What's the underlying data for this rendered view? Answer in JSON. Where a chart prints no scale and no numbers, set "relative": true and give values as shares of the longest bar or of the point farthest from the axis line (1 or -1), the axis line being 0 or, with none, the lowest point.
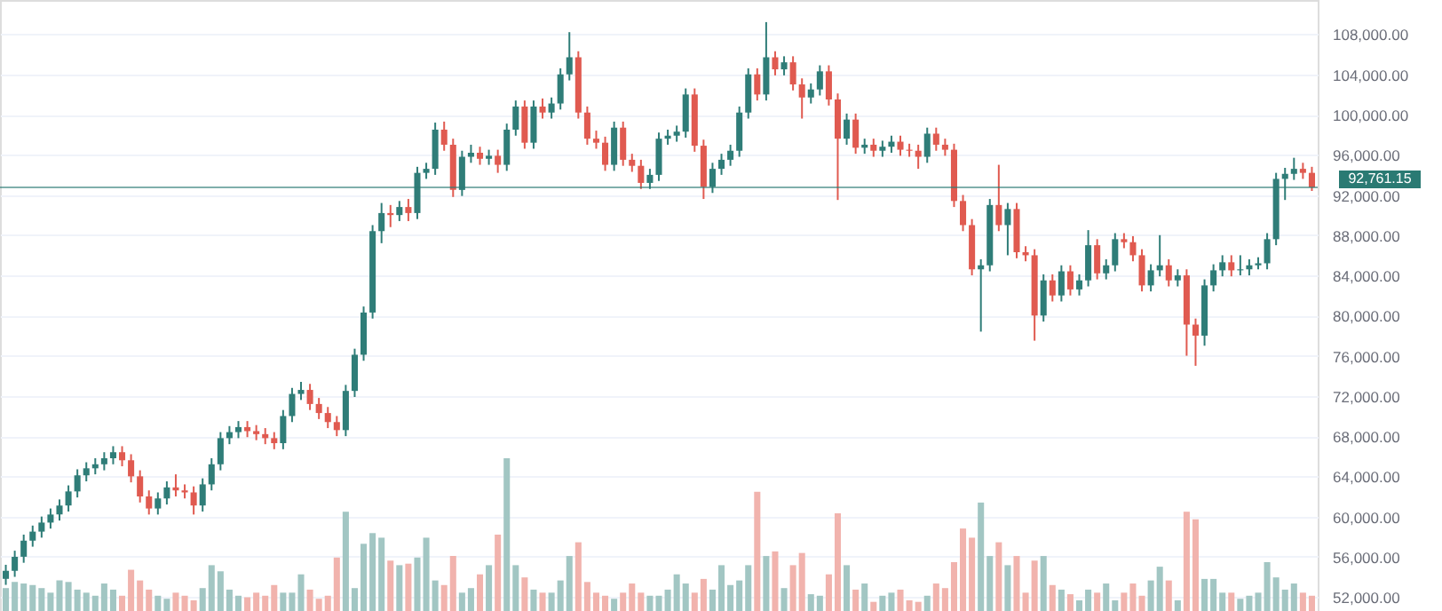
{
  "chart_data": [
    {
      "type": "candlestick",
      "categories": [
        null,
        null,
        null,
        null,
        null,
        null,
        null,
        null,
        null,
        null,
        null,
        null,
        null,
        null,
        null,
        null,
        null,
        null,
        null,
        null,
        null,
        null,
        null,
        null,
        null,
        null,
        null,
        null,
        null,
        null,
        null,
        null,
        null,
        null,
        null,
        null,
        null,
        null,
        null,
        null,
        null,
        null,
        null,
        null,
        null,
        null,
        null,
        null,
        null,
        null,
        null,
        null,
        null,
        null,
        null,
        null,
        null,
        null,
        null,
        null,
        null,
        null,
        null,
        null,
        null,
        null,
        null,
        null,
        null,
        null,
        null,
        null,
        null,
        null,
        null,
        null,
        null,
        null,
        null,
        null,
        null,
        null,
        null,
        null,
        null,
        null,
        null,
        null,
        null,
        null,
        null,
        null,
        null,
        null,
        null,
        null,
        null,
        null,
        null,
        null,
        null,
        null,
        null,
        null,
        null,
        null,
        null,
        null,
        null,
        null,
        null,
        null,
        null,
        null,
        null,
        null,
        null,
        null,
        null,
        null,
        null,
        null,
        null,
        null,
        null,
        null,
        null,
        null,
        null,
        null,
        null,
        null,
        null,
        null,
        null,
        null,
        null,
        null,
        null,
        null,
        null,
        null,
        null,
        null,
        null,
        null,
        null
      ],
      "ohlc": [
        [
          53800,
          55200,
          53200,
          54600
        ],
        [
          54600,
          56600,
          54000,
          56000
        ],
        [
          56000,
          58200,
          55400,
          57600
        ],
        [
          57600,
          59100,
          57000,
          58500
        ],
        [
          58500,
          60000,
          57900,
          59400
        ],
        [
          59400,
          60800,
          58800,
          60200
        ],
        [
          60200,
          61700,
          59600,
          61100
        ],
        [
          61100,
          63100,
          60500,
          62500
        ],
        [
          62500,
          64700,
          61900,
          64100
        ],
        [
          64100,
          65400,
          63500,
          64800
        ],
        [
          64800,
          65800,
          64200,
          65200
        ],
        [
          65200,
          66400,
          64600,
          65800
        ],
        [
          65800,
          67000,
          65200,
          66400
        ],
        [
          66400,
          67000,
          65000,
          65600
        ],
        [
          65600,
          66200,
          63400,
          64000
        ],
        [
          64000,
          64600,
          61400,
          62000
        ],
        [
          62000,
          62600,
          60200,
          60800
        ],
        [
          60800,
          62400,
          60200,
          61800
        ],
        [
          61800,
          63500,
          61200,
          62900
        ],
        [
          62900,
          64200,
          62000,
          62600
        ],
        [
          62600,
          63200,
          61800,
          62400
        ],
        [
          62400,
          63000,
          60200,
          61100
        ],
        [
          61100,
          63800,
          60500,
          63200
        ],
        [
          63200,
          65800,
          62600,
          65200
        ],
        [
          65200,
          68400,
          64600,
          67800
        ],
        [
          67800,
          69000,
          67200,
          68400
        ],
        [
          68400,
          69500,
          67800,
          68900
        ],
        [
          68900,
          69500,
          67900,
          68500
        ],
        [
          68500,
          69100,
          67600,
          68200
        ],
        [
          68200,
          68800,
          67200,
          67800
        ],
        [
          67800,
          68400,
          66700,
          67300
        ],
        [
          67300,
          70600,
          66700,
          70000
        ],
        [
          70000,
          72800,
          69400,
          72200
        ],
        [
          72200,
          73400,
          71600,
          72600
        ],
        [
          72600,
          73200,
          70600,
          71200
        ],
        [
          71200,
          71800,
          69700,
          70300
        ],
        [
          70300,
          70900,
          68800,
          69400
        ],
        [
          69400,
          70000,
          68000,
          68600
        ],
        [
          68600,
          73100,
          68000,
          72500
        ],
        [
          72500,
          76700,
          71900,
          76100
        ],
        [
          76100,
          80900,
          75500,
          80300
        ],
        [
          80300,
          89000,
          79700,
          88400
        ],
        [
          88400,
          91200,
          87200,
          90200
        ],
        [
          90200,
          91000,
          88800,
          90000
        ],
        [
          90000,
          91400,
          89400,
          90800
        ],
        [
          90800,
          91600,
          89400,
          90200
        ],
        [
          90200,
          94800,
          89600,
          94200
        ],
        [
          94200,
          95200,
          93600,
          94600
        ],
        [
          94600,
          99200,
          94000,
          98500
        ],
        [
          98500,
          99300,
          96400,
          97000
        ],
        [
          97000,
          97600,
          91800,
          92500
        ],
        [
          92500,
          96400,
          91900,
          95800
        ],
        [
          95800,
          97000,
          95200,
          96200
        ],
        [
          96200,
          96800,
          95000,
          95600
        ],
        [
          95600,
          96500,
          95000,
          95900
        ],
        [
          95900,
          96500,
          94200,
          95000
        ],
        [
          95000,
          99100,
          94400,
          98500
        ],
        [
          98500,
          101400,
          97900,
          100800
        ],
        [
          100800,
          101400,
          96600,
          97200
        ],
        [
          97200,
          101400,
          96600,
          100800
        ],
        [
          100800,
          101600,
          99600,
          100200
        ],
        [
          100200,
          101700,
          99600,
          101100
        ],
        [
          101100,
          104600,
          100500,
          104000
        ],
        [
          104000,
          108200,
          103400,
          105700
        ],
        [
          105700,
          106300,
          99600,
          100200
        ],
        [
          100200,
          100800,
          97000,
          97600
        ],
        [
          97600,
          98400,
          96600,
          97200
        ],
        [
          97200,
          97800,
          94400,
          95000
        ],
        [
          95000,
          99300,
          94400,
          98700
        ],
        [
          98700,
          99300,
          94900,
          95500
        ],
        [
          95500,
          96100,
          94300,
          94900
        ],
        [
          94900,
          95500,
          92600,
          93200
        ],
        [
          93200,
          94600,
          92600,
          94000
        ],
        [
          94000,
          98200,
          93400,
          97600
        ],
        [
          97600,
          98500,
          97000,
          97900
        ],
        [
          97900,
          98900,
          97300,
          98300
        ],
        [
          98300,
          102600,
          97700,
          102000
        ],
        [
          102000,
          102600,
          96300,
          96900
        ],
        [
          96900,
          97500,
          91600,
          92800
        ],
        [
          92800,
          95200,
          92200,
          94600
        ],
        [
          94600,
          96100,
          94000,
          95500
        ],
        [
          95500,
          97000,
          94900,
          96400
        ],
        [
          96400,
          100800,
          95800,
          100200
        ],
        [
          100200,
          104600,
          99600,
          104000
        ],
        [
          104000,
          104600,
          101400,
          102000
        ],
        [
          102000,
          109200,
          101400,
          105700
        ],
        [
          105700,
          106300,
          103900,
          104500
        ],
        [
          104500,
          105800,
          103900,
          105200
        ],
        [
          105200,
          105800,
          102400,
          103000
        ],
        [
          103000,
          103600,
          99600,
          101700
        ],
        [
          101700,
          103100,
          101100,
          102500
        ],
        [
          102500,
          104900,
          101900,
          104300
        ],
        [
          104300,
          104900,
          100900,
          101500
        ],
        [
          101500,
          102100,
          91500,
          97600
        ],
        [
          97600,
          100100,
          97000,
          99500
        ],
        [
          99500,
          100100,
          96100,
          96700
        ],
        [
          96700,
          97600,
          96100,
          97000
        ],
        [
          97000,
          97600,
          95800,
          96400
        ],
        [
          96400,
          97400,
          95800,
          96800
        ],
        [
          96800,
          97900,
          96200,
          97300
        ],
        [
          97300,
          97900,
          95900,
          96500
        ],
        [
          96500,
          97100,
          95800,
          96400
        ],
        [
          96400,
          97000,
          94600,
          95800
        ],
        [
          95800,
          98700,
          95200,
          98100
        ],
        [
          98100,
          98700,
          96400,
          97000
        ],
        [
          97000,
          97600,
          95900,
          96500
        ],
        [
          96500,
          97100,
          90800,
          91400
        ],
        [
          91400,
          92000,
          88400,
          89000
        ],
        [
          89000,
          89600,
          84000,
          84600
        ],
        [
          84600,
          85600,
          78400,
          85000
        ],
        [
          85000,
          91600,
          84400,
          91000
        ],
        [
          91000,
          95000,
          88400,
          89000
        ],
        [
          89000,
          91200,
          86000,
          90600
        ],
        [
          90600,
          91200,
          85700,
          86300
        ],
        [
          86300,
          86900,
          85400,
          86000
        ],
        [
          86000,
          86600,
          77500,
          80000
        ],
        [
          80000,
          84100,
          79400,
          83500
        ],
        [
          83500,
          84100,
          81400,
          82000
        ],
        [
          82000,
          85000,
          81400,
          84400
        ],
        [
          84400,
          85000,
          82000,
          82600
        ],
        [
          82600,
          84100,
          82000,
          83500
        ],
        [
          83500,
          88500,
          82900,
          87000
        ],
        [
          87000,
          87600,
          83600,
          84200
        ],
        [
          84200,
          85600,
          83600,
          85000
        ],
        [
          85000,
          88200,
          84400,
          87600
        ],
        [
          87600,
          88200,
          86700,
          87300
        ],
        [
          87300,
          87900,
          85400,
          86000
        ],
        [
          86000,
          86600,
          82400,
          83000
        ],
        [
          83000,
          85100,
          82400,
          84500
        ],
        [
          84500,
          88000,
          83900,
          85000
        ],
        [
          85000,
          85600,
          82900,
          83500
        ],
        [
          83500,
          84600,
          82900,
          84000
        ],
        [
          84000,
          84600,
          76000,
          79100
        ],
        [
          79100,
          79700,
          75000,
          78000
        ],
        [
          78000,
          83600,
          77000,
          83000
        ],
        [
          83000,
          85100,
          82400,
          84500
        ],
        [
          84500,
          86000,
          83900,
          85300
        ],
        [
          85300,
          86000,
          83900,
          84500
        ],
        [
          84500,
          86000,
          84000,
          84600
        ],
        [
          84600,
          85600,
          84000,
          85000
        ],
        [
          85000,
          85800,
          84600,
          85200
        ],
        [
          85200,
          88200,
          84600,
          87600
        ],
        [
          87600,
          94200,
          87000,
          93600
        ],
        [
          93600,
          94700,
          91500,
          94100
        ],
        [
          94100,
          95700,
          93500,
          94600
        ],
        [
          94600,
          95200,
          93600,
          94200
        ],
        [
          94200,
          94800,
          92400,
          92760
        ]
      ],
      "colors": [
        "#2f7d78",
        "#2f7d78",
        "#2f7d78",
        "#2f7d78",
        "#2f7d78",
        "#2f7d78",
        "#2f7d78",
        "#2f7d78",
        "#2f7d78",
        "#2f7d78",
        "#2f7d78",
        "#2f7d78",
        "#2f7d78",
        "#e05a50",
        "#e05a50",
        "#e05a50",
        "#e05a50",
        "#2f7d78",
        "#2f7d78",
        "#e05a50",
        "#e05a50",
        "#e05a50",
        "#2f7d78",
        "#2f7d78",
        "#2f7d78",
        "#2f7d78",
        "#2f7d78",
        "#e05a50",
        "#e05a50",
        "#e05a50",
        "#e05a50",
        "#2f7d78",
        "#2f7d78",
        "#2f7d78",
        "#e05a50",
        "#e05a50",
        "#e05a50",
        "#e05a50",
        "#2f7d78",
        "#2f7d78",
        "#2f7d78",
        "#2f7d78",
        "#2f7d78",
        "#e05a50",
        "#2f7d78",
        "#e05a50",
        "#2f7d78",
        "#2f7d78",
        "#2f7d78",
        "#e05a50",
        "#e05a50",
        "#2f7d78",
        "#2f7d78",
        "#e05a50",
        "#2f7d78",
        "#e05a50",
        "#2f7d78",
        "#2f7d78",
        "#e05a50",
        "#2f7d78",
        "#e05a50",
        "#2f7d78",
        "#2f7d78",
        "#2f7d78",
        "#e05a50",
        "#e05a50",
        "#e05a50",
        "#e05a50",
        "#2f7d78",
        "#e05a50",
        "#e05a50",
        "#e05a50",
        "#2f7d78",
        "#2f7d78",
        "#2f7d78",
        "#2f7d78",
        "#2f7d78",
        "#e05a50",
        "#e05a50",
        "#2f7d78",
        "#2f7d78",
        "#2f7d78",
        "#2f7d78",
        "#2f7d78",
        "#e05a50",
        "#2f7d78",
        "#e05a50",
        "#2f7d78",
        "#e05a50",
        "#e05a50",
        "#2f7d78",
        "#2f7d78",
        "#e05a50",
        "#e05a50",
        "#2f7d78",
        "#e05a50",
        "#2f7d78",
        "#e05a50",
        "#2f7d78",
        "#2f7d78",
        "#e05a50",
        "#e05a50",
        "#e05a50",
        "#2f7d78",
        "#e05a50",
        "#e05a50",
        "#e05a50",
        "#e05a50",
        "#e05a50",
        "#2f7d78",
        "#2f7d78",
        "#e05a50",
        "#2f7d78",
        "#e05a50",
        "#e05a50",
        "#e05a50",
        "#2f7d78",
        "#e05a50",
        "#2f7d78",
        "#e05a50",
        "#2f7d78",
        "#2f7d78",
        "#e05a50",
        "#2f7d78",
        "#2f7d78",
        "#e05a50",
        "#e05a50",
        "#e05a50",
        "#2f7d78",
        "#2f7d78",
        "#e05a50",
        "#2f7d78",
        "#e05a50",
        "#e05a50",
        "#2f7d78",
        "#2f7d78",
        "#2f7d78",
        "#e05a50",
        "#2f7d78",
        "#2f7d78",
        "#2f7d78",
        "#2f7d78",
        "#2f7d78",
        "#2f7d78",
        "#2f7d78",
        "#e05a50",
        "#e05a50"
      ],
      "ylim": [
        50600,
        111400
      ],
      "yticks": [
        {
          "value": 52000,
          "label": "52,000.00"
        },
        {
          "value": 56000,
          "label": "56,000.00"
        },
        {
          "value": 60000,
          "label": "60,000.00"
        },
        {
          "value": 64000,
          "label": "64,000.00"
        },
        {
          "value": 68000,
          "label": "68,000.00"
        },
        {
          "value": 72000,
          "label": "72,000.00"
        },
        {
          "value": 76000,
          "label": "76,000.00"
        },
        {
          "value": 80000,
          "label": "80,000.00"
        },
        {
          "value": 84000,
          "label": "84,000.00"
        },
        {
          "value": 88000,
          "label": "88,000.00"
        },
        {
          "value": 92000,
          "label": "92,000.00"
        },
        {
          "value": 96000,
          "label": "96,000.00"
        },
        {
          "value": 100000,
          "label": "100,000.00"
        },
        {
          "value": 104000,
          "label": "104,000.00"
        },
        {
          "value": 108000,
          "label": "108,000.00"
        }
      ],
      "ref_lines": [
        {
          "axis": "y",
          "value": 92761.15,
          "label": "92,761.15",
          "color": "#2a7a73"
        }
      ],
      "grid": "y"
    },
    {
      "type": "bar",
      "relative": true,
      "categories": [
        null,
        null,
        null,
        null,
        null,
        null,
        null,
        null,
        null,
        null,
        null,
        null,
        null,
        null,
        null,
        null,
        null,
        null,
        null,
        null,
        null,
        null,
        null,
        null,
        null,
        null,
        null,
        null,
        null,
        null,
        null,
        null,
        null,
        null,
        null,
        null,
        null,
        null,
        null,
        null,
        null,
        null,
        null,
        null,
        null,
        null,
        null,
        null,
        null,
        null,
        null,
        null,
        null,
        null,
        null,
        null,
        null,
        null,
        null,
        null,
        null,
        null,
        null,
        null,
        null,
        null,
        null,
        null,
        null,
        null,
        null,
        null,
        null,
        null,
        null,
        null,
        null,
        null,
        null,
        null,
        null,
        null,
        null,
        null,
        null,
        null,
        null,
        null,
        null,
        null,
        null,
        null,
        null,
        null,
        null,
        null,
        null,
        null,
        null,
        null,
        null,
        null,
        null,
        null,
        null,
        null,
        null,
        null,
        null,
        null,
        null,
        null,
        null,
        null,
        null,
        null,
        null,
        null,
        null,
        null,
        null,
        null,
        null,
        null,
        null,
        null,
        null,
        null,
        null,
        null,
        null,
        null,
        null,
        null,
        null,
        null,
        null,
        null,
        null,
        null,
        null,
        null,
        null,
        null,
        null,
        null,
        null
      ],
      "values": [
        0.15,
        0.19,
        0.18,
        0.17,
        0.15,
        0.12,
        0.2,
        0.19,
        0.14,
        0.12,
        0.1,
        0.18,
        0.14,
        0.1,
        0.27,
        0.2,
        0.14,
        0.1,
        0.08,
        0.12,
        0.1,
        0.07,
        0.15,
        0.3,
        0.26,
        0.14,
        0.1,
        0.09,
        0.12,
        0.1,
        0.17,
        0.12,
        0.12,
        0.24,
        0.14,
        0.08,
        0.1,
        0.35,
        0.65,
        0.15,
        0.44,
        0.51,
        0.48,
        0.33,
        0.3,
        0.31,
        0.35,
        0.48,
        0.2,
        0.17,
        0.36,
        0.12,
        0.15,
        0.24,
        0.3,
        0.5,
        1.0,
        0.3,
        0.22,
        0.14,
        0.12,
        0.12,
        0.2,
        0.36,
        0.45,
        0.19,
        0.12,
        0.1,
        0.08,
        0.12,
        0.18,
        0.12,
        0.1,
        0.1,
        0.14,
        0.24,
        0.18,
        0.12,
        0.21,
        0.14,
        0.3,
        0.17,
        0.2,
        0.3,
        0.78,
        0.36,
        0.39,
        0.15,
        0.3,
        0.38,
        0.11,
        0.1,
        0.24,
        0.64,
        0.3,
        0.14,
        0.18,
        0.06,
        0.1,
        0.12,
        0.14,
        0.07,
        0.06,
        0.1,
        0.18,
        0.15,
        0.32,
        0.54,
        0.48,
        0.71,
        0.36,
        0.45,
        0.3,
        0.36,
        0.12,
        0.33,
        0.36,
        0.17,
        0.14,
        0.11,
        0.07,
        0.14,
        0.12,
        0.18,
        0.07,
        0.12,
        0.18,
        0.1,
        0.2,
        0.29,
        0.2,
        0.07,
        0.65,
        0.6,
        0.21,
        0.21,
        0.12,
        0.12,
        0.08,
        0.1,
        0.12,
        0.32,
        0.22,
        0.14,
        0.18,
        0.12,
        0.1
      ],
      "colors": [
        "#a2c6c3",
        "#a2c6c3",
        "#a2c6c3",
        "#a2c6c3",
        "#a2c6c3",
        "#a2c6c3",
        "#a2c6c3",
        "#a2c6c3",
        "#a2c6c3",
        "#a2c6c3",
        "#a2c6c3",
        "#a2c6c3",
        "#a2c6c3",
        "#f1b3ad",
        "#f1b3ad",
        "#f1b3ad",
        "#f1b3ad",
        "#a2c6c3",
        "#a2c6c3",
        "#f1b3ad",
        "#f1b3ad",
        "#f1b3ad",
        "#a2c6c3",
        "#a2c6c3",
        "#a2c6c3",
        "#a2c6c3",
        "#a2c6c3",
        "#f1b3ad",
        "#f1b3ad",
        "#f1b3ad",
        "#f1b3ad",
        "#a2c6c3",
        "#a2c6c3",
        "#a2c6c3",
        "#f1b3ad",
        "#f1b3ad",
        "#f1b3ad",
        "#f1b3ad",
        "#a2c6c3",
        "#a2c6c3",
        "#a2c6c3",
        "#a2c6c3",
        "#a2c6c3",
        "#f1b3ad",
        "#a2c6c3",
        "#f1b3ad",
        "#a2c6c3",
        "#a2c6c3",
        "#a2c6c3",
        "#f1b3ad",
        "#f1b3ad",
        "#a2c6c3",
        "#a2c6c3",
        "#f1b3ad",
        "#a2c6c3",
        "#f1b3ad",
        "#a2c6c3",
        "#a2c6c3",
        "#f1b3ad",
        "#a2c6c3",
        "#f1b3ad",
        "#a2c6c3",
        "#a2c6c3",
        "#a2c6c3",
        "#f1b3ad",
        "#f1b3ad",
        "#f1b3ad",
        "#f1b3ad",
        "#a2c6c3",
        "#f1b3ad",
        "#f1b3ad",
        "#f1b3ad",
        "#a2c6c3",
        "#a2c6c3",
        "#a2c6c3",
        "#a2c6c3",
        "#a2c6c3",
        "#f1b3ad",
        "#f1b3ad",
        "#a2c6c3",
        "#a2c6c3",
        "#a2c6c3",
        "#a2c6c3",
        "#a2c6c3",
        "#f1b3ad",
        "#a2c6c3",
        "#f1b3ad",
        "#a2c6c3",
        "#f1b3ad",
        "#f1b3ad",
        "#a2c6c3",
        "#a2c6c3",
        "#f1b3ad",
        "#f1b3ad",
        "#a2c6c3",
        "#f1b3ad",
        "#a2c6c3",
        "#f1b3ad",
        "#a2c6c3",
        "#a2c6c3",
        "#f1b3ad",
        "#f1b3ad",
        "#f1b3ad",
        "#a2c6c3",
        "#f1b3ad",
        "#f1b3ad",
        "#f1b3ad",
        "#f1b3ad",
        "#f1b3ad",
        "#a2c6c3",
        "#a2c6c3",
        "#f1b3ad",
        "#a2c6c3",
        "#f1b3ad",
        "#f1b3ad",
        "#f1b3ad",
        "#a2c6c3",
        "#f1b3ad",
        "#a2c6c3",
        "#f1b3ad",
        "#a2c6c3",
        "#a2c6c3",
        "#f1b3ad",
        "#a2c6c3",
        "#a2c6c3",
        "#f1b3ad",
        "#f1b3ad",
        "#f1b3ad",
        "#a2c6c3",
        "#a2c6c3",
        "#f1b3ad",
        "#a2c6c3",
        "#f1b3ad",
        "#f1b3ad",
        "#a2c6c3",
        "#a2c6c3",
        "#a2c6c3",
        "#f1b3ad",
        "#a2c6c3",
        "#a2c6c3",
        "#a2c6c3",
        "#a2c6c3",
        "#a2c6c3",
        "#a2c6c3",
        "#a2c6c3",
        "#f1b3ad",
        "#f1b3ad"
      ]
    }
  ]
}
